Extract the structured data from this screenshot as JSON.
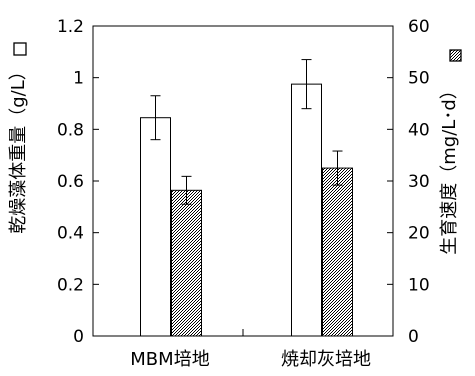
{
  "chart_data": {
    "type": "bar",
    "categories": [
      "MBM培地",
      "焼却灰培地"
    ],
    "left_axis": {
      "label": "乾燥藻体重量（g/L）",
      "ylim": [
        0,
        1.2
      ],
      "ticks": [
        "0",
        "0.2",
        "0.4",
        "0.6",
        "0.8",
        "1",
        "1.2"
      ]
    },
    "right_axis": {
      "label": "生育速度（mg/L･d）",
      "ylim": [
        0,
        60
      ],
      "ticks": [
        "0",
        "10",
        "20",
        "30",
        "40",
        "50",
        "60"
      ]
    },
    "series": [
      {
        "key": "dry_weight",
        "axis": "left",
        "fill": "white",
        "values": [
          0.845,
          0.975
        ],
        "errors": [
          0.085,
          0.095
        ]
      },
      {
        "key": "growth_rate",
        "axis": "right",
        "fill": "hatched",
        "values": [
          28.2,
          32.5
        ],
        "errors": [
          2.7,
          3.3
        ]
      }
    ],
    "grid": false,
    "legend": "none"
  }
}
